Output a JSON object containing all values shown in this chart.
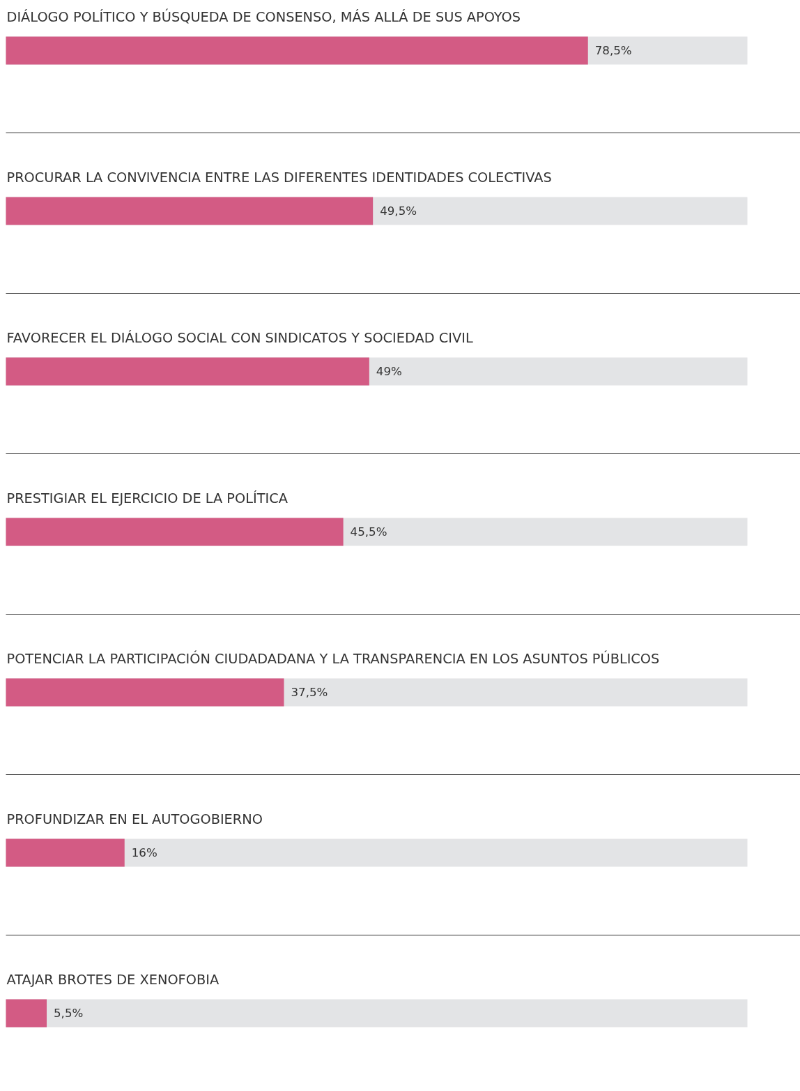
{
  "chart_data": {
    "type": "bar",
    "orientation": "horizontal",
    "categories": [
      "DIÁLOGO POLÍTICO Y BÚSQUEDA DE CONSENSO, MÁS ALLÁ DE SUS APOYOS",
      "PROCURAR LA CONVIVENCIA ENTRE LAS DIFERENTES IDENTIDADES COLECTIVAS",
      "FAVORECER EL DIÁLOGO SOCIAL CON SINDICATOS Y SOCIEDAD CIVIL",
      "PRESTIGIAR EL EJERCICIO DE LA POLÍTICA",
      "POTENCIAR LA PARTICIPACIÓN CIUDADADANA Y LA TRANSPARENCIA EN LOS ASUNTOS PÚBLICOS",
      "PROFUNDIZAR EN EL AUTOGOBIERNO",
      "ATAJAR BROTES DE XENOFOBIA"
    ],
    "values": [
      78.5,
      49.5,
      49,
      45.5,
      37.5,
      16,
      5.5
    ],
    "value_labels": [
      "78,5%",
      "49,5%",
      "49%",
      "45,5%",
      "37,5%",
      "16%",
      "5,5%"
    ],
    "color": "#d35b84",
    "xlim": [
      0,
      100
    ],
    "tick_labels": false,
    "grid": false
  }
}
